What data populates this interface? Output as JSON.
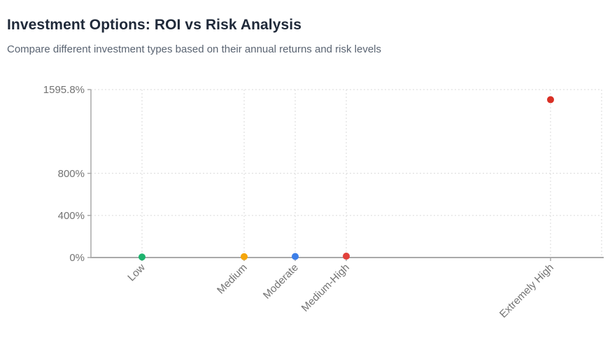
{
  "header": {
    "title": "Investment Options: ROI vs Risk Analysis",
    "subtitle": "Compare different investment types based on their annual returns and risk levels"
  },
  "chart_data": {
    "type": "scatter",
    "title": "Investment Options: ROI vs Risk Analysis",
    "subtitle": "Compare different investment types based on their annual returns and risk levels",
    "x_axis": {
      "label": "",
      "kind": "linear risk score",
      "range": [
        1,
        11
      ],
      "tick_label_rotation_deg": -45,
      "categories": [
        {
          "label": "Low",
          "score": 2
        },
        {
          "label": "Medium",
          "score": 4
        },
        {
          "label": "Moderate",
          "score": 5
        },
        {
          "label": "Medium-High",
          "score": 6
        },
        {
          "label": "Extremely High",
          "score": 10
        }
      ]
    },
    "y_axis": {
      "label": "",
      "unit": "%",
      "range": [
        0,
        1595.8
      ],
      "ticks": [
        {
          "value": 0,
          "label": "0%"
        },
        {
          "value": 400,
          "label": "400%"
        },
        {
          "value": 800,
          "label": "800%"
        },
        {
          "value": 1595.8,
          "label": "1595.8%"
        }
      ]
    },
    "points": [
      {
        "category": "Low",
        "risk_score": 2,
        "roi_pct_est": 5,
        "color": "#1db36e"
      },
      {
        "category": "Medium",
        "risk_score": 4,
        "roi_pct_est": 8,
        "color": "#f5a60b"
      },
      {
        "category": "Moderate",
        "risk_score": 5,
        "roi_pct_est": 10,
        "color": "#3d7fe8"
      },
      {
        "category": "Medium-High",
        "risk_score": 6,
        "roi_pct_est": 13,
        "color": "#e2413b"
      },
      {
        "category": "Extremely High",
        "risk_score": 10,
        "roi_pct_est": 1500,
        "color": "#d93025"
      }
    ],
    "grid": {
      "style": "dashed",
      "color": "#d9d9d9",
      "horizontal": true,
      "vertical": true,
      "right_edge_line": true
    },
    "axis_color": "#a9a9a9",
    "tick_text_color": "#737373",
    "legend": "none",
    "point_radius_px": 5
  },
  "colors": {
    "title": "#202a3a",
    "subtitle": "#5a6472",
    "background": "#ffffff"
  }
}
